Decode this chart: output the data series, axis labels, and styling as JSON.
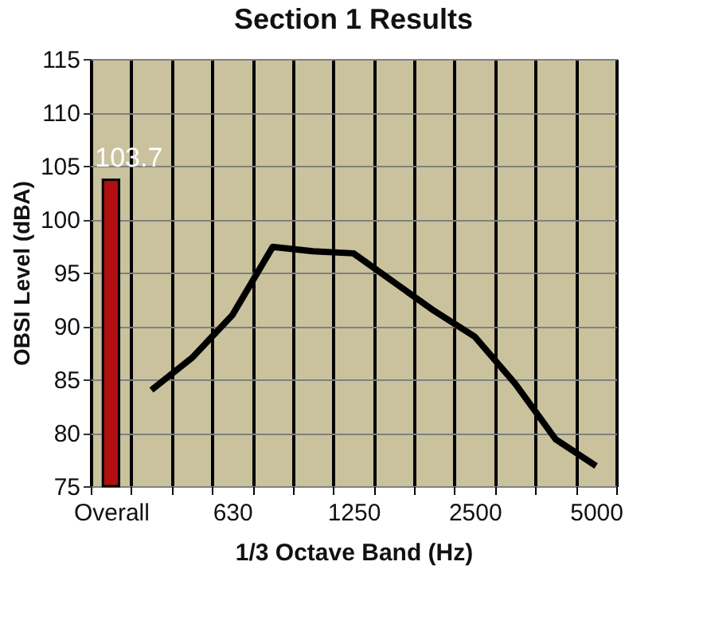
{
  "chart_data": {
    "type": "line",
    "title": "Section 1 Results",
    "xlabel": "1/3 Octave Band (Hz)",
    "ylabel": "OBSI Level (dBA)",
    "categories": [
      "Overall",
      null,
      null,
      "630",
      null,
      null,
      "1250",
      null,
      null,
      "2500",
      null,
      null,
      "5000"
    ],
    "series": [
      {
        "type": "bar",
        "color": "#b01010",
        "values": [
          103.7,
          null,
          null,
          null,
          null,
          null,
          null,
          null,
          null,
          null,
          null,
          null,
          null
        ],
        "value_labels": [
          "103.7",
          null,
          null,
          null,
          null,
          null,
          null,
          null,
          null,
          null,
          null,
          null,
          null
        ]
      },
      {
        "color": "#000000",
        "values": [
          null,
          84,
          87,
          91,
          97.4,
          97,
          96.8,
          94.1,
          91.4,
          89,
          84.6,
          79.4,
          76.9
        ]
      }
    ],
    "ylim": [
      75,
      115
    ],
    "yticks": [
      75,
      80,
      85,
      90,
      95,
      100,
      105,
      110,
      115
    ],
    "grid": true,
    "marker": "none",
    "line_style": "solid"
  }
}
